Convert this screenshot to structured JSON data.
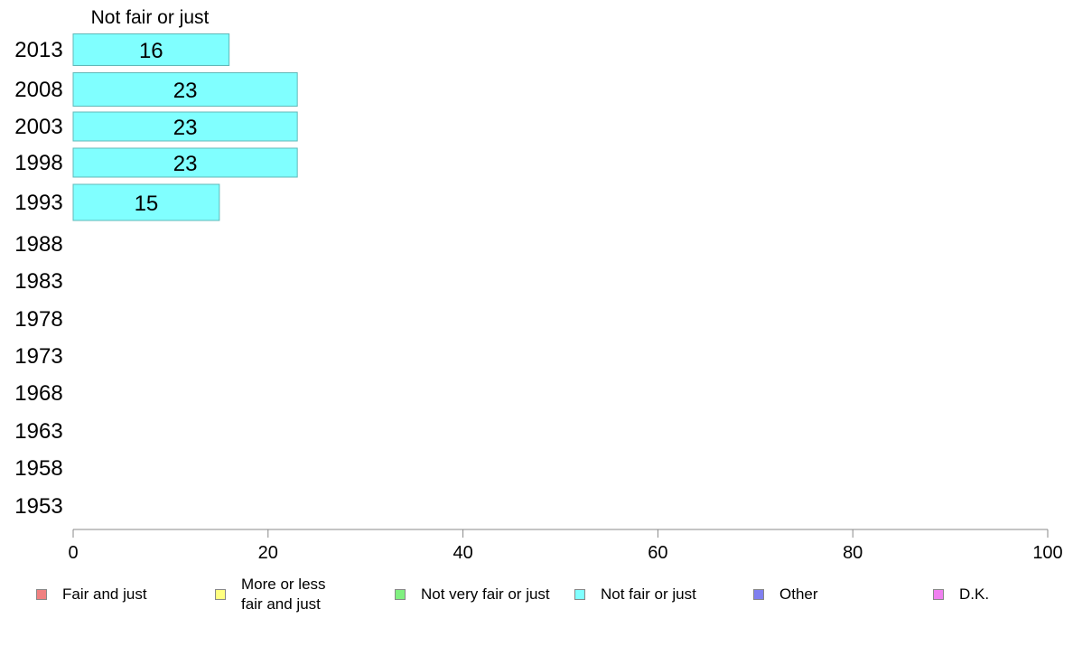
{
  "chart_data": {
    "type": "bar",
    "orientation": "horizontal",
    "stacked": true,
    "header": "Not fair or just",
    "categories": [
      "2013",
      "2008",
      "2003",
      "1998",
      "1993",
      "1988",
      "1983",
      "1978",
      "1973",
      "1968",
      "1963",
      "1958",
      "1953"
    ],
    "series": [
      {
        "name": "Fair and just",
        "color": "#f08080",
        "values": [
          null,
          null,
          null,
          null,
          null,
          null,
          null,
          null,
          null,
          null,
          null,
          null,
          null
        ]
      },
      {
        "name": "More or less fair and just",
        "color": "#ffff80",
        "values": [
          null,
          null,
          null,
          null,
          null,
          null,
          null,
          null,
          null,
          null,
          null,
          null,
          null
        ]
      },
      {
        "name": "Not very fair or just",
        "color": "#80f080",
        "values": [
          null,
          null,
          null,
          null,
          null,
          null,
          null,
          null,
          null,
          null,
          null,
          null,
          null
        ]
      },
      {
        "name": "Not fair or just",
        "color": "#80ffff",
        "values": [
          16,
          23,
          23,
          23,
          15,
          null,
          null,
          null,
          null,
          null,
          null,
          null,
          null
        ]
      },
      {
        "name": "Other",
        "color": "#8080f0",
        "values": [
          null,
          null,
          null,
          null,
          null,
          null,
          null,
          null,
          null,
          null,
          null,
          null,
          null
        ]
      },
      {
        "name": "D.K.",
        "color": "#f080f0",
        "values": [
          null,
          null,
          null,
          null,
          null,
          null,
          null,
          null,
          null,
          null,
          null,
          null,
          null
        ]
      }
    ],
    "xlim": [
      0,
      100
    ],
    "xticks": [
      0,
      20,
      40,
      60,
      80,
      100
    ],
    "legend_position": "bottom",
    "grid": false
  }
}
